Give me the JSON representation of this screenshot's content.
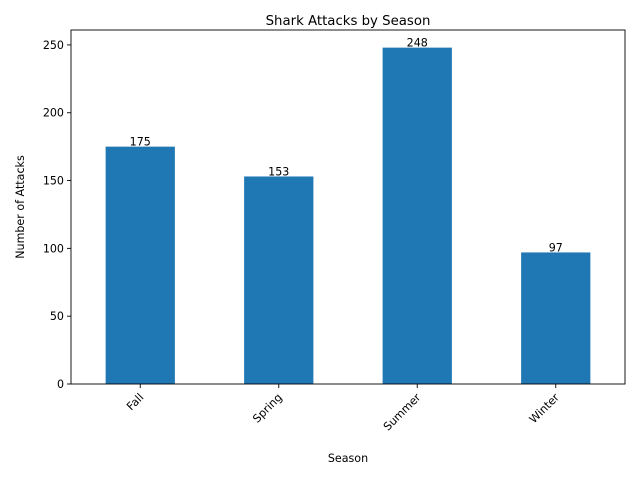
{
  "chart_data": {
    "type": "bar",
    "title": "Shark Attacks by Season",
    "xlabel": "Season",
    "ylabel": "Number of Attacks",
    "categories": [
      "Fall",
      "Spring",
      "Summer",
      "Winter"
    ],
    "values": [
      175,
      153,
      248,
      97
    ],
    "data_labels": [
      "175",
      "153",
      "248",
      "97"
    ],
    "ylim": [
      0,
      261
    ],
    "yticks": [
      0,
      50,
      100,
      150,
      200,
      250
    ],
    "ytick_labels": [
      "0",
      "50",
      "100",
      "150",
      "200",
      "250"
    ],
    "xtick_rotation": 45,
    "bar_color": "#1f77b4",
    "grid": false,
    "legend": "none"
  }
}
